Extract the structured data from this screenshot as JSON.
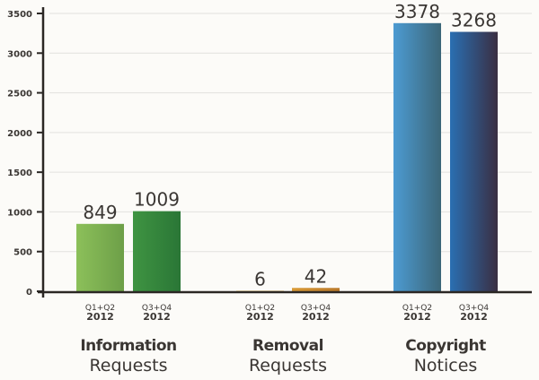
{
  "chart_data": {
    "type": "bar",
    "title": "",
    "xlabel": "",
    "ylabel": "",
    "ylim": [
      0,
      3500
    ],
    "yticks": [
      "0",
      "500",
      "1000",
      "1500",
      "2000",
      "2500",
      "3000",
      "3500"
    ],
    "grid": true,
    "groups": [
      {
        "title_bold": "Information",
        "title_regular": "Requests",
        "bars": [
          {
            "period": "Q1+Q2",
            "year": "2012",
            "value": 849,
            "label": "849",
            "color_start": "#8cc05a",
            "color_end": "#6d9f48"
          },
          {
            "period": "Q3+Q4",
            "year": "2012",
            "value": 1009,
            "label": "1009",
            "color_start": "#3f9442",
            "color_end": "#2a7636"
          }
        ]
      },
      {
        "title_bold": "Removal",
        "title_regular": "Requests",
        "bars": [
          {
            "period": "Q1+Q2",
            "year": "2012",
            "value": 6,
            "label": "6",
            "color_start": "#efc24a",
            "color_end": "#d9a63a"
          },
          {
            "period": "Q3+Q4",
            "year": "2012",
            "value": 42,
            "label": "42",
            "color_start": "#d99a35",
            "color_end": "#b9782a"
          }
        ]
      },
      {
        "title_bold": "Copyright",
        "title_regular": "Notices",
        "bars": [
          {
            "period": "Q1+Q2",
            "year": "2012",
            "value": 3378,
            "label": "3378",
            "color_start": "#4c9bd2",
            "color_end": "#3c6678"
          },
          {
            "period": "Q3+Q4",
            "year": "2012",
            "value": 3268,
            "label": "3268",
            "color_start": "#2a6fb2",
            "color_end": "#3a2e42"
          }
        ]
      }
    ]
  }
}
